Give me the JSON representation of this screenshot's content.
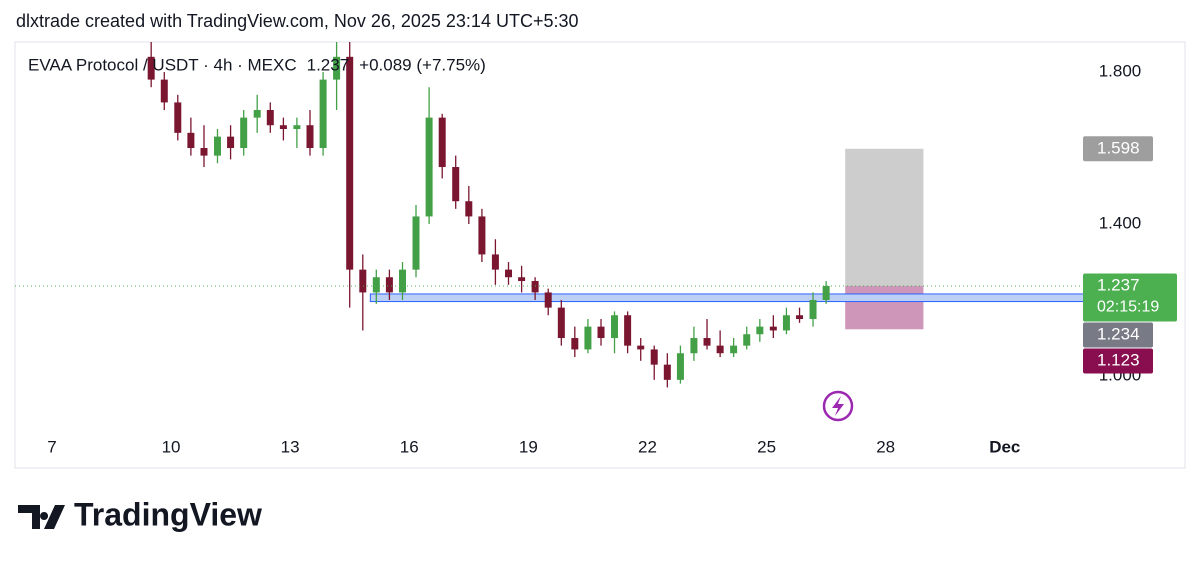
{
  "header": "dlxtrade created with TradingView.com, Nov 26, 2025 23:14 UTC+5:30",
  "footer": "TradingView",
  "chart_data": {
    "type": "candlestick",
    "title": "EVAA Protocol / USDT · 4h · MEXC",
    "last": "1.237",
    "change": "+0.089 (+7.75%)",
    "up_color": "#43a047",
    "down_color": "#7b1630",
    "xlim": [
      6.07,
      33.02
    ],
    "xticks": [
      7,
      10,
      13,
      16,
      19,
      22,
      25,
      28,
      {
        "value": 31,
        "label": "Dec"
      }
    ],
    "ylim": [
      0.858,
      1.879
    ],
    "yticks": [
      {
        "value": 1.0,
        "label": "1.000"
      },
      {
        "value": 1.4,
        "label": "1.400"
      },
      {
        "value": 1.8,
        "label": "1.800"
      }
    ],
    "x": [
      9.5,
      9.83,
      10.17,
      10.5,
      10.83,
      11.17,
      11.5,
      11.83,
      12.17,
      12.5,
      12.83,
      13.17,
      13.5,
      13.83,
      14.17,
      14.5,
      14.83,
      15.17,
      15.5,
      15.83,
      16.17,
      16.5,
      16.83,
      17.17,
      17.5,
      17.83,
      18.17,
      18.5,
      18.83,
      19.17,
      19.5,
      19.83,
      20.17,
      20.5,
      20.83,
      21.17,
      21.5,
      21.83,
      22.17,
      22.5,
      22.83,
      23.17,
      23.5,
      23.83,
      24.17,
      24.5,
      24.83,
      25.17,
      25.5,
      25.83,
      26.17,
      26.5
    ],
    "open": [
      1.84,
      1.78,
      1.72,
      1.64,
      1.6,
      1.58,
      1.63,
      1.6,
      1.68,
      1.7,
      1.66,
      1.65,
      1.66,
      1.6,
      1.78,
      1.84,
      1.28,
      1.22,
      1.26,
      1.22,
      1.28,
      1.42,
      1.68,
      1.55,
      1.46,
      1.42,
      1.32,
      1.28,
      1.26,
      1.25,
      1.22,
      1.18,
      1.1,
      1.07,
      1.13,
      1.1,
      1.16,
      1.08,
      1.07,
      1.03,
      0.99,
      1.06,
      1.1,
      1.08,
      1.06,
      1.08,
      1.11,
      1.13,
      1.12,
      1.16,
      1.15,
      1.2
    ],
    "high": [
      1.88,
      1.8,
      1.74,
      1.68,
      1.66,
      1.65,
      1.66,
      1.7,
      1.74,
      1.72,
      1.68,
      1.68,
      1.7,
      1.8,
      1.88,
      1.88,
      1.32,
      1.28,
      1.28,
      1.3,
      1.45,
      1.76,
      1.69,
      1.58,
      1.5,
      1.44,
      1.36,
      1.3,
      1.29,
      1.26,
      1.23,
      1.2,
      1.13,
      1.15,
      1.15,
      1.17,
      1.17,
      1.1,
      1.08,
      1.06,
      1.08,
      1.13,
      1.15,
      1.12,
      1.1,
      1.13,
      1.15,
      1.16,
      1.18,
      1.18,
      1.22,
      1.25
    ],
    "low": [
      1.76,
      1.7,
      1.62,
      1.58,
      1.55,
      1.56,
      1.57,
      1.58,
      1.64,
      1.64,
      1.62,
      1.6,
      1.58,
      1.58,
      1.7,
      1.18,
      1.12,
      1.19,
      1.2,
      1.2,
      1.26,
      1.4,
      1.52,
      1.44,
      1.4,
      1.3,
      1.24,
      1.24,
      1.22,
      1.2,
      1.16,
      1.08,
      1.05,
      1.06,
      1.08,
      1.06,
      1.06,
      1.04,
      0.99,
      0.97,
      0.98,
      1.04,
      1.07,
      1.05,
      1.05,
      1.07,
      1.09,
      1.1,
      1.11,
      1.14,
      1.13,
      1.19
    ],
    "close": [
      1.78,
      1.72,
      1.64,
      1.6,
      1.58,
      1.63,
      1.6,
      1.68,
      1.7,
      1.66,
      1.65,
      1.66,
      1.6,
      1.78,
      1.84,
      1.28,
      1.22,
      1.26,
      1.22,
      1.28,
      1.42,
      1.68,
      1.55,
      1.46,
      1.42,
      1.32,
      1.28,
      1.26,
      1.25,
      1.22,
      1.18,
      1.1,
      1.07,
      1.13,
      1.1,
      1.16,
      1.08,
      1.07,
      1.03,
      0.99,
      1.06,
      1.1,
      1.08,
      1.06,
      1.08,
      1.11,
      1.13,
      1.12,
      1.16,
      1.15,
      1.2,
      1.237
    ],
    "zone": {
      "low": 1.196,
      "high": 1.216,
      "x_start": 15.02,
      "color": "#bcd0f5",
      "border": "#2962ff"
    },
    "position": {
      "x": [
        26.98,
        28.95
      ],
      "entry": 1.237,
      "target": 1.598,
      "stop": 1.123,
      "target_color": "#c8c8c8",
      "stop_color": "#c98bb0"
    },
    "price_labels": [
      {
        "value": 1.598,
        "label": "1.598",
        "color": "#9e9e9e"
      },
      {
        "value": 1.237,
        "label": "1.237",
        "countdown": "02:15:19",
        "color": "#4caf50"
      },
      {
        "value": 1.234,
        "label": "1.234",
        "color": "#787b86"
      },
      {
        "value": 1.123,
        "label": "1.123",
        "color": "#880e4f"
      }
    ]
  }
}
